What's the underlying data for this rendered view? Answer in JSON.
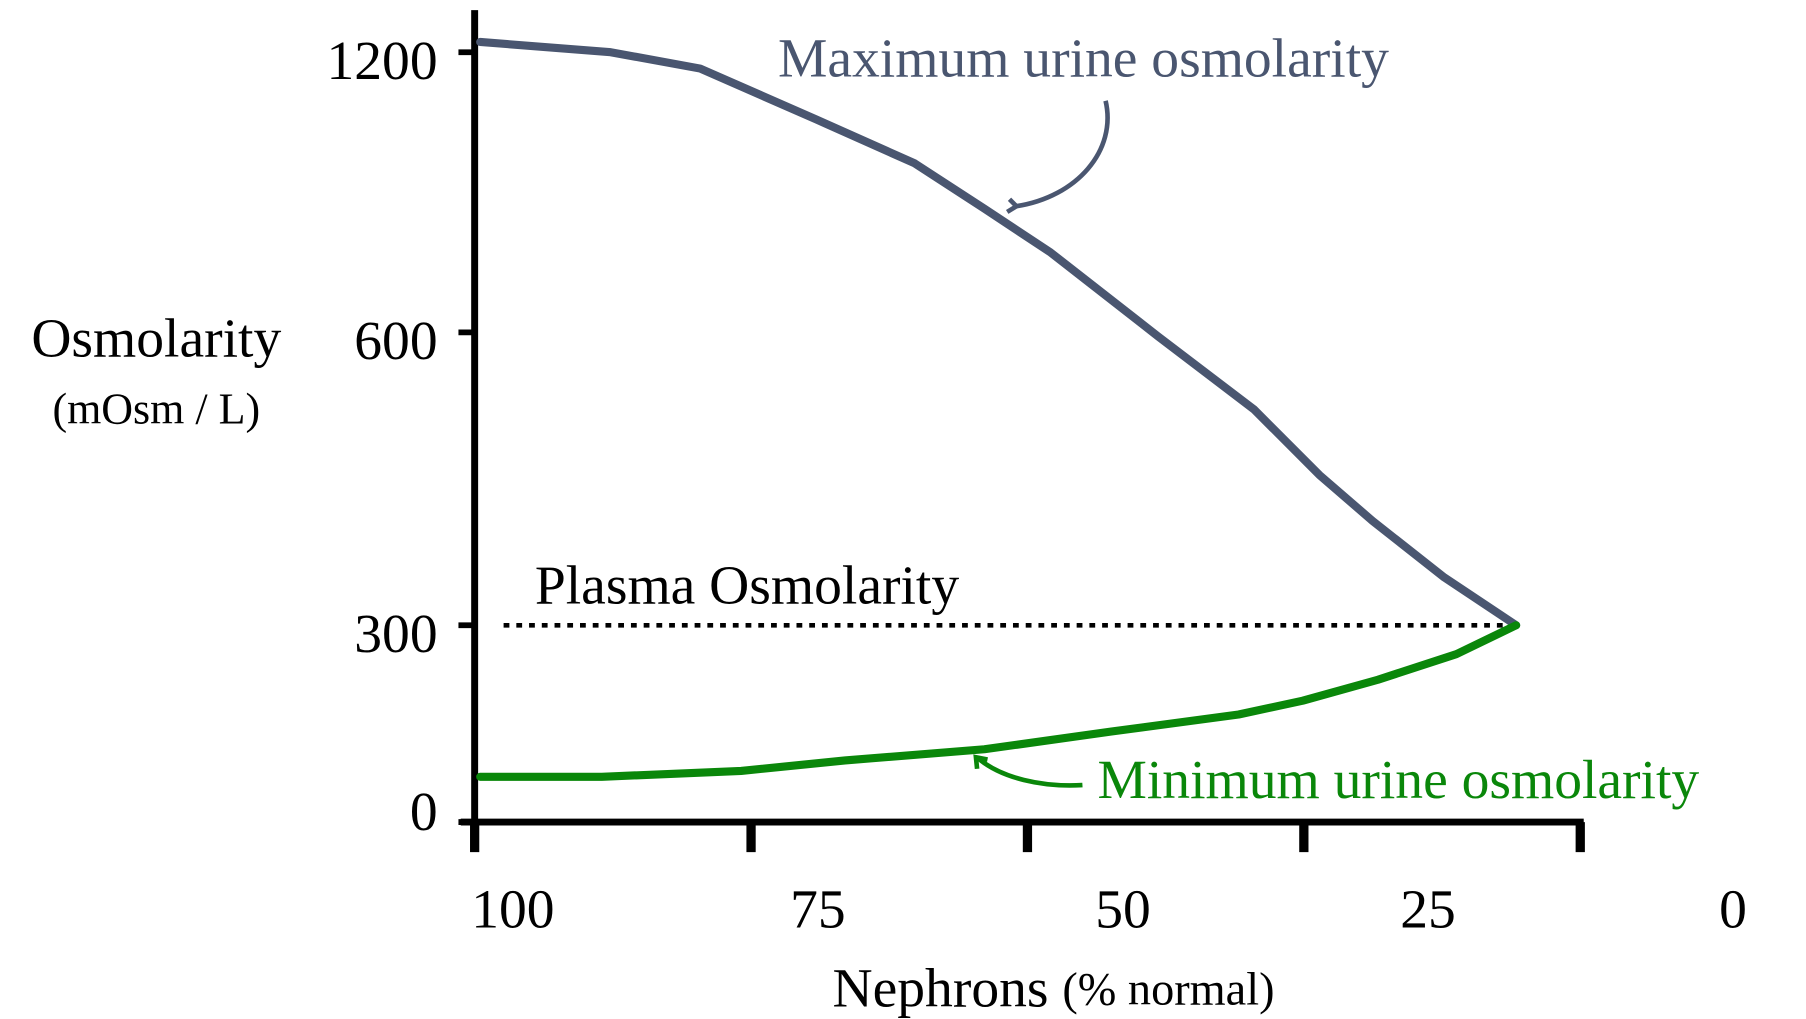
{
  "chart_data": {
    "type": "line",
    "x_label": "Nephrons",
    "x_label_unit": "(% normal)",
    "y_label": "Osmolarity",
    "y_label_unit": "(mOsm / L)",
    "xlim": [
      100,
      0
    ],
    "xticks": [
      100,
      75,
      50,
      25,
      0
    ],
    "ylim": [
      0,
      1290
    ],
    "yticks": [
      0,
      300,
      600,
      1200
    ],
    "series": [
      {
        "name": "Maximum urine osmolarity",
        "color": "#4a5670",
        "x": [
          99.5,
          87.7,
          79.6,
          69.1,
          60.2,
          53.9,
          47.9,
          38.2,
          29.5,
          23.6,
          18.8,
          12.3,
          5.8
        ],
        "values": [
          1222,
          1200,
          1165,
          1056,
          962,
          865,
          771,
          596,
          521,
          454,
          407,
          349,
          300
        ]
      },
      {
        "name": "Minimum urine osmolarity",
        "color": "#0a870a",
        "x": [
          99.5,
          88.5,
          75.9,
          66.5,
          53.9,
          42.4,
          30.9,
          25.1,
          18.3,
          11.2,
          5.8
        ],
        "values": [
          69,
          69,
          78,
          94,
          111,
          138,
          164,
          185,
          217,
          256,
          300
        ]
      }
    ],
    "reference_line": {
      "value": 300,
      "label": "Plasma Osmolarity",
      "color": "#000000"
    }
  }
}
